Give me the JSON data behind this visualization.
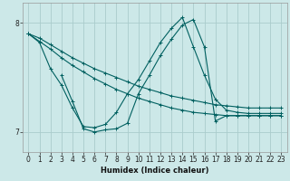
{
  "xlabel": "Humidex (Indice chaleur)",
  "bg_color": "#cce8e8",
  "grid_color": "#aacccc",
  "line_color": "#006060",
  "xlim": [
    -0.5,
    23.5
  ],
  "ylim": [
    6.82,
    8.18
  ],
  "yticks": [
    7,
    8
  ],
  "xticks": [
    0,
    1,
    2,
    3,
    4,
    5,
    6,
    7,
    8,
    9,
    10,
    11,
    12,
    13,
    14,
    15,
    16,
    17,
    18,
    19,
    20,
    21,
    22,
    23
  ],
  "lines": [
    {
      "x": [
        0,
        1,
        2,
        3,
        4,
        5,
        6,
        7,
        8,
        9,
        10,
        11,
        12,
        13,
        14,
        15,
        16,
        17,
        18,
        19,
        20,
        21,
        22,
        23
      ],
      "y": [
        7.9,
        7.86,
        7.8,
        7.74,
        7.68,
        7.63,
        7.58,
        7.54,
        7.5,
        7.46,
        7.42,
        7.39,
        7.36,
        7.33,
        7.31,
        7.29,
        7.27,
        7.25,
        7.24,
        7.23,
        7.22,
        7.22,
        7.22,
        7.22
      ]
    },
    {
      "x": [
        0,
        1,
        2,
        3,
        4,
        5,
        6,
        7,
        8,
        9,
        10,
        11,
        12,
        13,
        14,
        15,
        16,
        17,
        18,
        19,
        20,
        21,
        22,
        23
      ],
      "y": [
        7.9,
        7.83,
        7.76,
        7.68,
        7.61,
        7.55,
        7.49,
        7.44,
        7.39,
        7.35,
        7.31,
        7.28,
        7.25,
        7.22,
        7.2,
        7.18,
        7.17,
        7.16,
        7.15,
        7.15,
        7.15,
        7.15,
        7.15,
        7.15
      ]
    },
    {
      "x": [
        0,
        1,
        2,
        3,
        4,
        5,
        6,
        7,
        8,
        9,
        10,
        11,
        12,
        13,
        14,
        15,
        16,
        17,
        18,
        19,
        20,
        21,
        22,
        23
      ],
      "y": [
        7.9,
        7.82,
        7.58,
        7.43,
        7.22,
        7.05,
        7.04,
        7.07,
        7.18,
        7.35,
        7.48,
        7.65,
        7.82,
        7.95,
        8.05,
        7.78,
        7.52,
        7.3,
        7.2,
        7.18,
        7.17,
        7.17,
        7.17,
        7.17
      ]
    },
    {
      "x": [
        3,
        4,
        5,
        6,
        7,
        8,
        9,
        10,
        11,
        12,
        13,
        14,
        15,
        16,
        17,
        18,
        19,
        20,
        21,
        22,
        23
      ],
      "y": [
        7.52,
        7.28,
        7.03,
        7.0,
        7.02,
        7.03,
        7.08,
        7.35,
        7.52,
        7.7,
        7.85,
        7.98,
        8.03,
        7.78,
        7.1,
        7.15,
        7.15,
        7.15,
        7.15,
        7.15,
        7.15
      ]
    }
  ]
}
